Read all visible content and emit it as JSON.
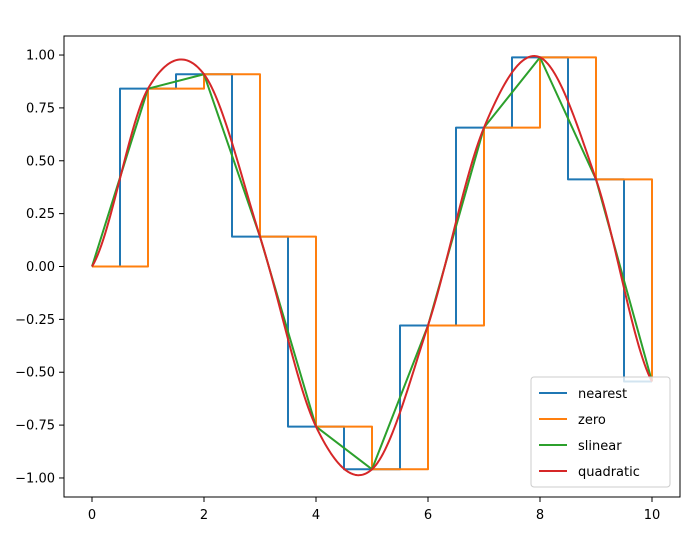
{
  "chart_data": {
    "type": "line",
    "title": "",
    "xlabel": "",
    "ylabel": "",
    "xlim": [
      -0.5,
      10.5
    ],
    "ylim": [
      -1.09,
      1.09
    ],
    "x_ticks": [
      "0",
      "2",
      "4",
      "6",
      "8",
      "10"
    ],
    "y_ticks": [
      "−1.00",
      "−0.75",
      "−0.50",
      "−0.25",
      "0.00",
      "0.25",
      "0.50",
      "0.75",
      "1.00"
    ],
    "grid": false,
    "legend_position": "lower-right",
    "x": [
      0,
      1,
      2,
      3,
      4,
      5,
      6,
      7,
      8,
      9,
      10
    ],
    "series": [
      {
        "name": "nearest",
        "kind": "step-mid",
        "color": "#1f77b4",
        "values": [
          0.0,
          0.841,
          0.909,
          0.141,
          -0.757,
          -0.959,
          -0.279,
          0.657,
          0.989,
          0.412,
          -0.544
        ]
      },
      {
        "name": "zero",
        "kind": "step-post",
        "color": "#ff7f0e",
        "values": [
          0.0,
          0.841,
          0.909,
          0.141,
          -0.757,
          -0.959,
          -0.279,
          0.657,
          0.989,
          0.412,
          -0.544
        ]
      },
      {
        "name": "slinear",
        "kind": "linear",
        "color": "#2ca02c",
        "values": [
          0.0,
          0.841,
          0.909,
          0.141,
          -0.757,
          -0.959,
          -0.279,
          0.657,
          0.989,
          0.412,
          -0.544
        ]
      },
      {
        "name": "quadratic",
        "kind": "smooth",
        "color": "#d62728",
        "values": [
          0.0,
          0.841,
          0.909,
          0.141,
          -0.757,
          -0.959,
          -0.279,
          0.657,
          0.989,
          0.412,
          -0.544
        ]
      }
    ]
  }
}
